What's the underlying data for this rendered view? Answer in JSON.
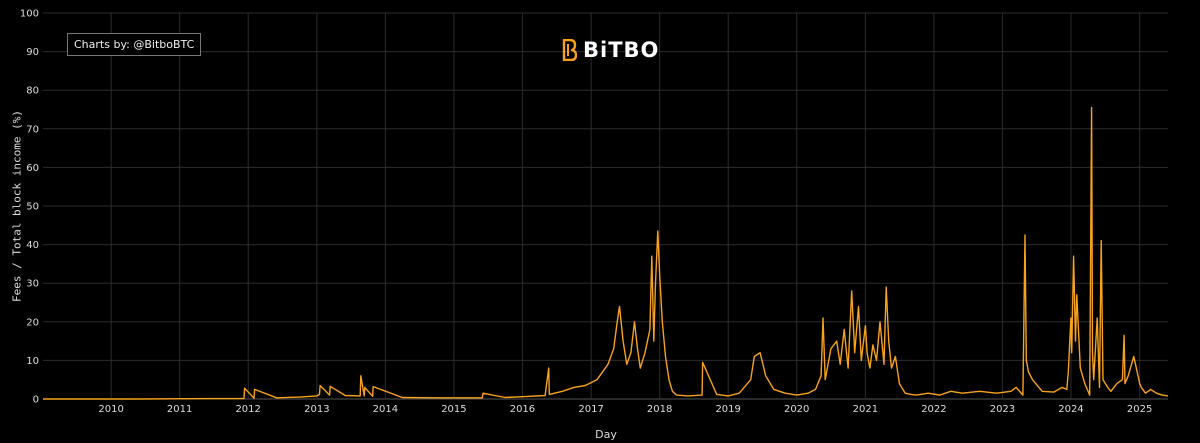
{
  "credit": "Charts by: @BitboBTC",
  "logo": {
    "text": "BiTBO",
    "icon": "bitbo-b-icon",
    "accent": "#f7a21b"
  },
  "colors": {
    "background": "#000000",
    "line": "#f7a21b",
    "grid": "#2c2c2c",
    "text": "#dddddd"
  },
  "chart_data": {
    "type": "line",
    "title": "",
    "xlabel": "Day",
    "ylabel": "Fees / Total block income (%)",
    "xlim": [
      "2009-01-03",
      "2025-06-01"
    ],
    "ylim": [
      0,
      100
    ],
    "yticks": [
      0,
      10,
      20,
      30,
      40,
      50,
      60,
      70,
      80,
      90,
      100
    ],
    "xticks": [
      "2010",
      "2011",
      "2012",
      "2013",
      "2014",
      "2015",
      "2016",
      "2017",
      "2018",
      "2019",
      "2020",
      "2021",
      "2022",
      "2023",
      "2024",
      "2025"
    ],
    "grid": true,
    "legend": "none",
    "series": [
      {
        "x": [
          "2009-01-03",
          "2010-06-01",
          "2011-06-01",
          "2011-12-10",
          "2011-12-13",
          "2012-02-01",
          "2012-02-04",
          "2012-06-01",
          "2012-10-01",
          "2013-01-01",
          "2013-01-15",
          "2013-01-18",
          "2013-03-10",
          "2013-03-13",
          "2013-06-01",
          "2013-08-20",
          "2013-08-23",
          "2013-09-10",
          "2013-09-13",
          "2013-10-25",
          "2013-10-28",
          "2014-04-01",
          "2014-10-01",
          "2015-03-01",
          "2015-06-01",
          "2015-06-05",
          "2015-10-01",
          "2016-01-01",
          "2016-05-01",
          "2016-05-20",
          "2016-05-23",
          "2016-08-01",
          "2016-10-01",
          "2016-12-01",
          "2017-02-01",
          "2017-04-01",
          "2017-05-01",
          "2017-05-20",
          "2017-06-01",
          "2017-06-20",
          "2017-07-10",
          "2017-08-01",
          "2017-08-20",
          "2017-09-05",
          "2017-09-20",
          "2017-10-15",
          "2017-11-10",
          "2017-11-20",
          "2017-12-01",
          "2017-12-10",
          "2017-12-22",
          "2018-01-01",
          "2018-01-15",
          "2018-02-01",
          "2018-02-20",
          "2018-03-10",
          "2018-04-01",
          "2018-06-01",
          "2018-08-15",
          "2018-08-18",
          "2018-11-01",
          "2019-01-01",
          "2019-03-01",
          "2019-05-01",
          "2019-05-20",
          "2019-06-20",
          "2019-07-20",
          "2019-09-01",
          "2019-11-01",
          "2020-01-01",
          "2020-03-01",
          "2020-04-10",
          "2020-05-10",
          "2020-05-20",
          "2020-06-01",
          "2020-07-01",
          "2020-08-01",
          "2020-08-20",
          "2020-09-10",
          "2020-10-01",
          "2020-10-20",
          "2020-11-05",
          "2020-11-25",
          "2020-12-10",
          "2021-01-01",
          "2021-01-10",
          "2021-01-25",
          "2021-02-10",
          "2021-03-01",
          "2021-03-20",
          "2021-04-10",
          "2021-04-22",
          "2021-05-05",
          "2021-05-20",
          "2021-06-10",
          "2021-07-01",
          "2021-08-01",
          "2021-09-01",
          "2021-10-01",
          "2021-12-01",
          "2022-02-01",
          "2022-04-01",
          "2022-06-01",
          "2022-09-01",
          "2022-12-01",
          "2023-02-15",
          "2023-03-15",
          "2023-04-20",
          "2023-05-01",
          "2023-05-08",
          "2023-05-20",
          "2023-06-10",
          "2023-08-01",
          "2023-10-01",
          "2023-11-15",
          "2023-12-10",
          "2023-12-18",
          "2024-01-01",
          "2024-01-05",
          "2024-01-15",
          "2024-01-25",
          "2024-02-01",
          "2024-02-20",
          "2024-03-15",
          "2024-04-10",
          "2024-04-20",
          "2024-04-25",
          "2024-05-01",
          "2024-05-20",
          "2024-06-01",
          "2024-06-10",
          "2024-06-20",
          "2024-07-15",
          "2024-08-01",
          "2024-09-01",
          "2024-10-01",
          "2024-10-10",
          "2024-10-15",
          "2024-11-01",
          "2024-12-01",
          "2025-01-01",
          "2025-01-10",
          "2025-02-01",
          "2025-03-01",
          "2025-04-01",
          "2025-05-01",
          "2025-06-01"
        ],
        "y": [
          0,
          0,
          0.1,
          0.1,
          2.8,
          0.2,
          2.5,
          0.3,
          0.5,
          0.8,
          1.2,
          3.5,
          1.0,
          3.3,
          0.9,
          0.8,
          6.0,
          0.8,
          3.0,
          0.7,
          3.2,
          0.4,
          0.3,
          0.3,
          0.3,
          1.5,
          0.4,
          0.6,
          0.9,
          8.0,
          1.2,
          2.0,
          3.0,
          3.5,
          5.0,
          9.0,
          13.0,
          20.0,
          24.0,
          15.0,
          9.0,
          12.0,
          20.0,
          13.0,
          8.0,
          12.0,
          18.0,
          37.0,
          15.0,
          30.0,
          43.5,
          32.0,
          20.0,
          11.0,
          5.0,
          2.0,
          1.0,
          0.8,
          1.0,
          9.5,
          1.2,
          0.8,
          1.5,
          5.0,
          11.0,
          12.0,
          6.0,
          2.5,
          1.5,
          1.0,
          1.5,
          2.5,
          6.0,
          21.0,
          5.0,
          13.0,
          15.0,
          9.0,
          18.0,
          8.0,
          28.0,
          12.0,
          24.0,
          10.0,
          19.0,
          12.0,
          8.0,
          14.0,
          10.0,
          20.0,
          9.0,
          29.0,
          15.0,
          8.0,
          11.0,
          4.0,
          1.5,
          1.2,
          1.0,
          1.5,
          1.0,
          2.0,
          1.5,
          2.0,
          1.5,
          2.0,
          3.0,
          1.0,
          42.5,
          10.0,
          7.0,
          5.0,
          2.0,
          1.8,
          3.0,
          2.5,
          7.0,
          21.0,
          12.0,
          37.0,
          15.0,
          27.0,
          8.0,
          4.0,
          1.0,
          75.5,
          12.0,
          5.0,
          21.0,
          3.0,
          41.0,
          5.0,
          3.0,
          2.0,
          4.0,
          5.0,
          16.5,
          4.0,
          6.0,
          11.0,
          4.0,
          3.0,
          1.5,
          2.5,
          1.5,
          1.0,
          0.8
        ]
      }
    ]
  }
}
